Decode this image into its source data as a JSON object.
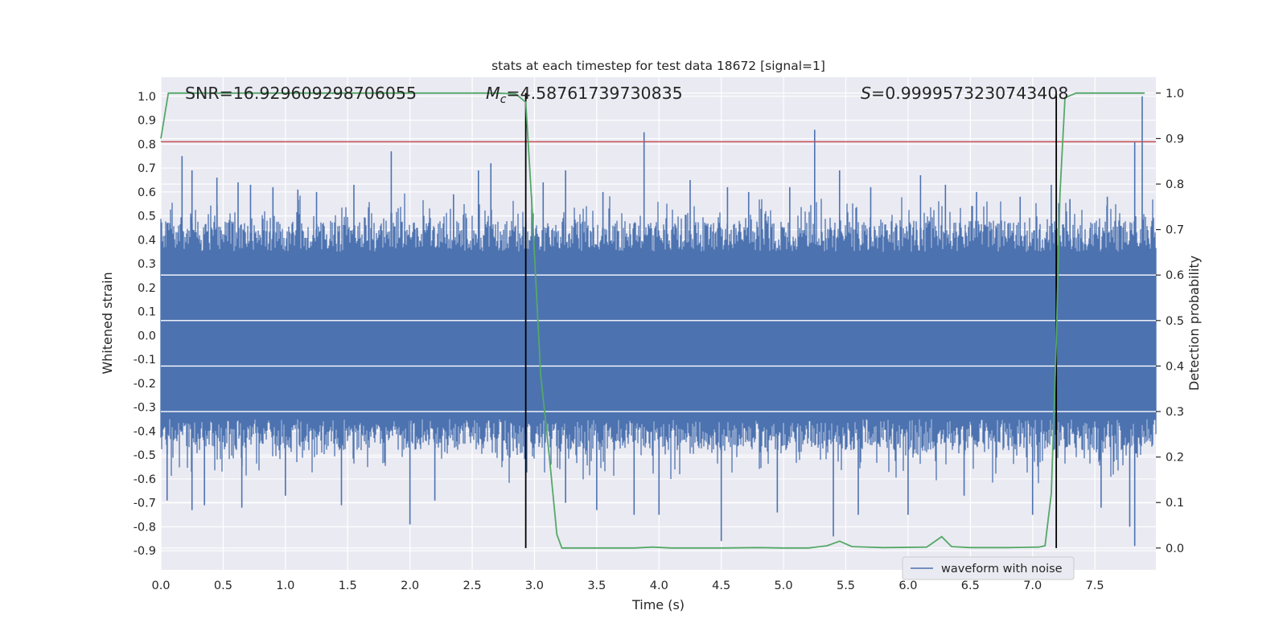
{
  "chart_data": {
    "type": "line",
    "title": "stats at each timestep for test data 18672 [signal=1]",
    "xlabel": "Time (s)",
    "ylabel_left": "Whitened strain",
    "ylabel_right": "Detection probability",
    "xlim": [
      0.0,
      7.99
    ],
    "ylim_left": [
      -0.98,
      1.08
    ],
    "ylim_right": [
      -0.048,
      1.035
    ],
    "x_ticks": [
      "0.0",
      "0.5",
      "1.0",
      "1.5",
      "2.0",
      "2.5",
      "3.0",
      "3.5",
      "4.0",
      "4.5",
      "5.0",
      "5.5",
      "6.0",
      "6.5",
      "7.0",
      "7.5"
    ],
    "y_ticks_left": [
      "1.0",
      "0.9",
      "0.8",
      "0.7",
      "0.6",
      "0.5",
      "0.4",
      "0.3",
      "0.2",
      "0.1",
      "0.0",
      "-0.1",
      "-0.2",
      "-0.3",
      "-0.4",
      "-0.5",
      "-0.6",
      "-0.7",
      "-0.8",
      "-0.9"
    ],
    "y_ticks_right": [
      "1.0",
      "0.9",
      "0.8",
      "0.7",
      "0.6",
      "0.5",
      "0.4",
      "0.3",
      "0.2",
      "0.1",
      "0.0"
    ],
    "grid": true,
    "legend": {
      "location": "lower-right",
      "entries": [
        "waveform with noise"
      ]
    },
    "annotations": {
      "snr": "SNR=16.929609298706055",
      "mc_symbol": "M",
      "mc_sub": "c",
      "mc_value": "=4.58761739730835",
      "s_symbol": "S",
      "s_value": "=0.9999573230743408"
    },
    "series": [
      {
        "name": "waveform with noise",
        "axis": "left",
        "color": "#4c72b0",
        "description": "dense noise band",
        "core_band": [
          -0.35,
          0.35
        ],
        "peaks_high": [
          [
            0.05,
            0.47
          ],
          [
            0.17,
            0.75
          ],
          [
            0.25,
            0.69
          ],
          [
            0.45,
            0.66
          ],
          [
            0.62,
            0.64
          ],
          [
            0.72,
            0.63
          ],
          [
            0.9,
            0.62
          ],
          [
            1.1,
            0.61
          ],
          [
            1.25,
            0.6
          ],
          [
            1.55,
            0.63
          ],
          [
            1.85,
            0.77
          ],
          [
            2.35,
            0.59
          ],
          [
            2.55,
            0.69
          ],
          [
            2.65,
            0.72
          ],
          [
            3.07,
            0.64
          ],
          [
            3.25,
            0.69
          ],
          [
            3.55,
            0.6
          ],
          [
            3.88,
            0.85
          ],
          [
            4.25,
            0.65
          ],
          [
            4.55,
            0.62
          ],
          [
            4.72,
            0.6
          ],
          [
            5.05,
            0.62
          ],
          [
            5.25,
            0.86
          ],
          [
            5.45,
            0.69
          ],
          [
            5.7,
            0.62
          ],
          [
            6.1,
            0.67
          ],
          [
            6.3,
            0.63
          ],
          [
            6.55,
            0.6
          ],
          [
            6.9,
            0.58
          ],
          [
            7.15,
            0.63
          ],
          [
            7.3,
            0.57
          ],
          [
            7.6,
            0.58
          ],
          [
            7.82,
            0.81
          ],
          [
            7.88,
            1.0
          ]
        ],
        "peaks_low": [
          [
            0.05,
            -0.69
          ],
          [
            0.25,
            -0.73
          ],
          [
            0.35,
            -0.71
          ],
          [
            0.65,
            -0.72
          ],
          [
            1.0,
            -0.67
          ],
          [
            1.45,
            -0.71
          ],
          [
            2.0,
            -0.79
          ],
          [
            2.2,
            -0.69
          ],
          [
            3.25,
            -0.7
          ],
          [
            3.5,
            -0.73
          ],
          [
            3.8,
            -0.75
          ],
          [
            4.0,
            -0.75
          ],
          [
            4.5,
            -0.86
          ],
          [
            4.95,
            -0.74
          ],
          [
            5.4,
            -0.84
          ],
          [
            5.6,
            -0.75
          ],
          [
            6.0,
            -0.75
          ],
          [
            6.45,
            -0.67
          ],
          [
            7.0,
            -0.75
          ],
          [
            7.55,
            -0.72
          ],
          [
            7.78,
            -0.8
          ],
          [
            7.82,
            -0.88
          ]
        ]
      },
      {
        "name": "",
        "axis": "right",
        "color": "#55a868",
        "x": [
          0.0,
          0.06,
          0.5,
          1.0,
          1.5,
          2.0,
          2.5,
          2.7,
          2.85,
          2.93,
          2.98,
          3.05,
          3.12,
          3.18,
          3.22,
          3.27,
          3.35,
          3.5,
          3.8,
          3.95,
          4.1,
          4.5,
          4.8,
          5.0,
          5.2,
          5.35,
          5.45,
          5.55,
          5.8,
          6.15,
          6.27,
          6.35,
          6.5,
          6.8,
          7.05,
          7.1,
          7.15,
          7.19,
          7.22,
          7.26,
          7.35,
          7.6,
          7.9
        ],
        "y": [
          0.9,
          1.0,
          1.0,
          1.0,
          1.0,
          1.0,
          1.0,
          1.0,
          0.998,
          0.98,
          0.75,
          0.38,
          0.2,
          0.03,
          0.0,
          0.0,
          0.0,
          0.0,
          0.0,
          0.002,
          0.0,
          0.0,
          0.001,
          0.0,
          0.0,
          0.005,
          0.015,
          0.003,
          0.001,
          0.002,
          0.025,
          0.003,
          0.001,
          0.001,
          0.002,
          0.005,
          0.12,
          0.45,
          0.78,
          0.99,
          1.0,
          1.0,
          1.0
        ]
      },
      {
        "name": "",
        "axis": "left",
        "color": "#c44e52",
        "type": "hline",
        "y": 0.81
      }
    ],
    "vlines": [
      2.93,
      7.19
    ]
  }
}
